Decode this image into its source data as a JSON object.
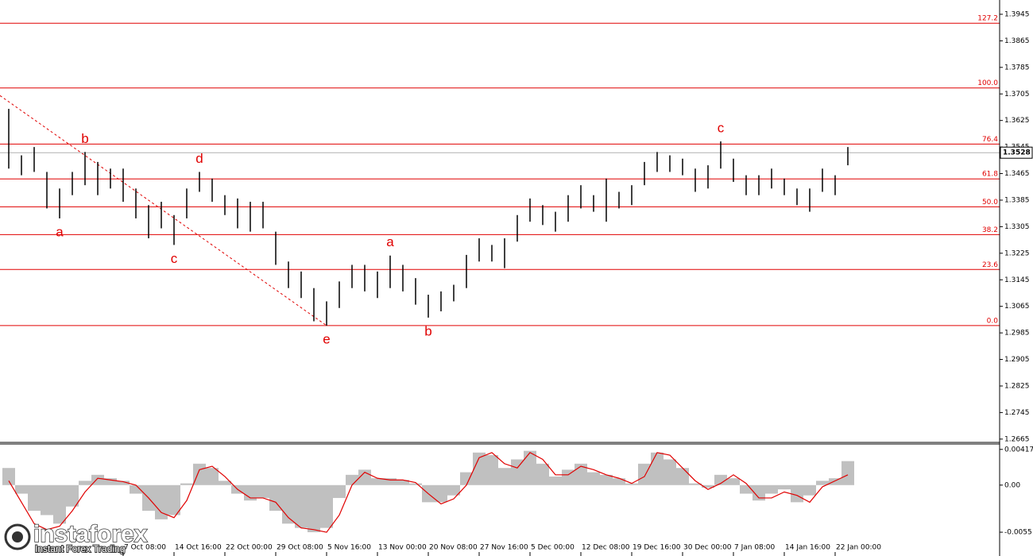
{
  "chart_data": [
    {
      "type": "range-bar",
      "color": "#000000",
      "ylim": [
        1.2655,
        1.3988
      ],
      "yticks": [
        1.2665,
        1.2745,
        1.2825,
        1.2905,
        1.2985,
        1.3065,
        1.3145,
        1.3225,
        1.3305,
        1.3385,
        1.3465,
        1.3545,
        1.3625,
        1.3705,
        1.3785,
        1.3865,
        1.3945
      ],
      "grid": false,
      "xticks": [
        {
          "value": 9,
          "label": "7 Oct 08:00"
        },
        {
          "value": 13,
          "label": "14 Oct 16:00"
        },
        {
          "value": 17,
          "label": "22 Oct 00:00"
        },
        {
          "value": 21,
          "label": "29 Oct 08:00"
        },
        {
          "value": 25,
          "label": "5 Nov 16:00"
        },
        {
          "value": 29,
          "label": "13 Nov 00:00"
        },
        {
          "value": 33,
          "label": "20 Nov 08:00"
        },
        {
          "value": 37,
          "label": "27 Nov 16:00"
        },
        {
          "value": 41,
          "label": "5 Dec 00:00"
        },
        {
          "value": 45,
          "label": "12 Dec 08:00"
        },
        {
          "value": 49,
          "label": "19 Dec 16:00"
        },
        {
          "value": 53,
          "label": "30 Dec 00:00"
        },
        {
          "value": 57,
          "label": "7 Jan 08:00"
        },
        {
          "value": 61,
          "label": "14 Jan 16:00"
        },
        {
          "value": 65,
          "label": "22 Jan 00:00"
        }
      ],
      "high": [
        1.366,
        1.352,
        1.3545,
        1.347,
        1.342,
        1.347,
        1.353,
        1.35,
        1.348,
        1.348,
        1.342,
        1.337,
        1.338,
        1.334,
        1.342,
        1.347,
        1.345,
        1.34,
        1.339,
        1.338,
        1.338,
        1.329,
        1.32,
        1.317,
        1.312,
        1.308,
        1.314,
        1.319,
        1.319,
        1.317,
        1.3218,
        1.319,
        1.315,
        1.31,
        1.311,
        1.313,
        1.322,
        1.327,
        1.325,
        1.327,
        1.334,
        1.339,
        1.337,
        1.335,
        1.34,
        1.343,
        1.34,
        1.345,
        1.341,
        1.343,
        1.35,
        1.353,
        1.352,
        1.351,
        1.348,
        1.349,
        1.3562,
        1.351,
        1.346,
        1.346,
        1.348,
        1.345,
        1.342,
        1.342,
        1.348,
        1.346,
        1.3545
      ],
      "low": [
        1.348,
        1.346,
        1.347,
        1.336,
        1.333,
        1.34,
        1.343,
        1.34,
        1.342,
        1.338,
        1.333,
        1.327,
        1.33,
        1.325,
        1.333,
        1.341,
        1.338,
        1.334,
        1.33,
        1.329,
        1.33,
        1.319,
        1.312,
        1.309,
        1.302,
        1.3007,
        1.306,
        1.312,
        1.311,
        1.309,
        1.312,
        1.311,
        1.307,
        1.3031,
        1.305,
        1.308,
        1.312,
        1.32,
        1.32,
        1.318,
        1.326,
        1.332,
        1.331,
        1.329,
        1.332,
        1.336,
        1.335,
        1.332,
        1.336,
        1.337,
        1.343,
        1.347,
        1.347,
        1.346,
        1.341,
        1.342,
        1.348,
        1.344,
        1.34,
        1.34,
        1.342,
        1.34,
        1.337,
        1.335,
        1.341,
        1.34,
        1.349
      ],
      "current_price": 1.3528,
      "fib_color": "#e00000",
      "fib_levels": [
        {
          "label": "0.0",
          "price": 1.3007
        },
        {
          "label": "23.6",
          "price": 1.3176
        },
        {
          "label": "38.2",
          "price": 1.3281
        },
        {
          "label": "50.0",
          "price": 1.3365
        },
        {
          "label": "61.8",
          "price": 1.3449
        },
        {
          "label": "76.4",
          "price": 1.3554
        },
        {
          "label": "100.0",
          "price": 1.3723
        },
        {
          "label": "127.2",
          "price": 1.3918
        }
      ],
      "trendline": {
        "bars": [
          0,
          25
        ],
        "prices": [
          1.37,
          1.3007
        ]
      },
      "annotations": [
        {
          "text": "a",
          "bar": 4,
          "price": 1.333,
          "position": "below"
        },
        {
          "text": "b",
          "bar": 6,
          "price": 1.353,
          "position": "above"
        },
        {
          "text": "c",
          "bar": 13,
          "price": 1.325,
          "position": "below"
        },
        {
          "text": "d",
          "bar": 15,
          "price": 1.347,
          "position": "above"
        },
        {
          "text": "e",
          "bar": 25,
          "price": 1.3007,
          "position": "below"
        },
        {
          "text": "a",
          "bar": 30,
          "price": 1.3218,
          "position": "above"
        },
        {
          "text": "b",
          "bar": 33,
          "price": 1.3031,
          "position": "below"
        },
        {
          "text": "c",
          "bar": 56,
          "price": 1.3562,
          "position": "above"
        }
      ]
    },
    {
      "type": "macd",
      "histogram_color": "#c0c0c0",
      "signal_color": "#e00000",
      "ylim": [
        -0.008,
        0.0048
      ],
      "yticks": [
        0.00417,
        {
          "value": 0,
          "label": "0.00"
        },
        -0.0055
      ],
      "histogram": [
        0.002,
        -0.001,
        -0.003,
        -0.0035,
        -0.0045,
        -0.0025,
        0.0005,
        0.0012,
        0.0008,
        0.0005,
        -0.001,
        -0.003,
        -0.004,
        -0.0035,
        0.0002,
        0.0025,
        0.002,
        0.0005,
        -0.001,
        -0.0018,
        -0.0015,
        -0.003,
        -0.0045,
        -0.005,
        -0.0055,
        -0.005,
        -0.0015,
        0.0012,
        0.0018,
        0.0008,
        0.0008,
        0.0006,
        0.0002,
        -0.002,
        -0.002,
        -0.0012,
        0.0015,
        0.0038,
        0.0035,
        0.002,
        0.003,
        0.004,
        0.0025,
        0.001,
        0.0018,
        0.0025,
        0.0015,
        0.0012,
        0.0008,
        0.0002,
        0.0025,
        0.0038,
        0.003,
        0.002,
        0.0002,
        -0.0003,
        0.0012,
        0.0008,
        -0.001,
        -0.0018,
        -0.001,
        -0.0005,
        -0.002,
        -0.0012,
        0.0005,
        0.0008,
        0.0028
      ],
      "signal": [
        0.0005,
        -0.002,
        -0.0045,
        -0.0052,
        -0.0048,
        -0.003,
        -0.0008,
        0.0008,
        0.0006,
        0.0004,
        0.0,
        -0.0015,
        -0.0032,
        -0.0038,
        -0.0018,
        0.0018,
        0.0022,
        0.001,
        -0.0005,
        -0.0015,
        -0.0015,
        -0.002,
        -0.0038,
        -0.005,
        -0.0052,
        -0.0055,
        -0.0035,
        0.0,
        0.0015,
        0.0008,
        0.0006,
        0.0006,
        0.0003,
        -0.001,
        -0.0022,
        -0.0016,
        0.0,
        0.0032,
        0.0038,
        0.0025,
        0.002,
        0.0038,
        0.003,
        0.0012,
        0.0012,
        0.0022,
        0.0018,
        0.0012,
        0.0008,
        0.0002,
        0.001,
        0.0038,
        0.0035,
        0.002,
        0.0005,
        -0.0005,
        0.0002,
        0.0012,
        0.0002,
        -0.0015,
        -0.0015,
        -0.0008,
        -0.0012,
        -0.002,
        -0.0002,
        0.0005,
        0.0012
      ]
    }
  ],
  "watermark": {
    "brand": "instaforex",
    "tagline": "Instant Forex Trading"
  }
}
